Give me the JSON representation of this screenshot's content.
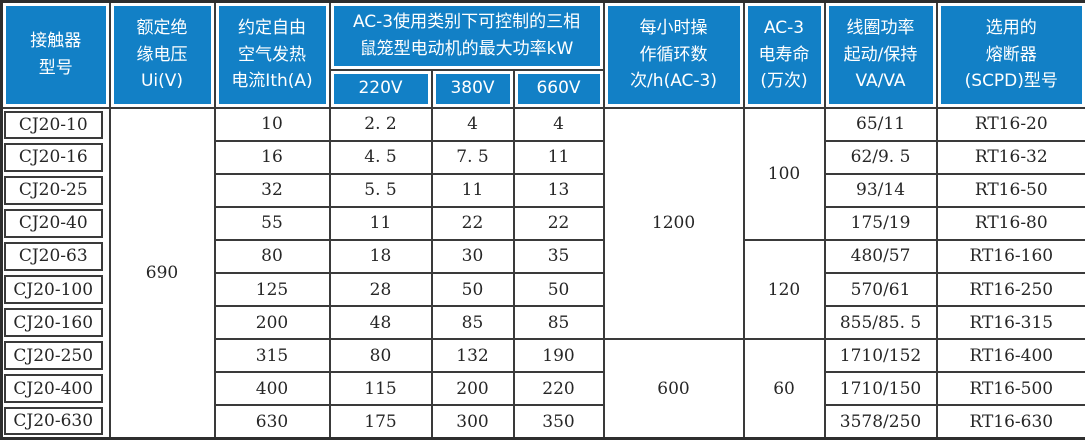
{
  "table": {
    "title": "CJ20 contactor specification table",
    "colors": {
      "header_bg": "#1280c6",
      "header_text": "#ffffff",
      "grid": "#3a3a3a",
      "body_text": "#262626",
      "background": "#ffffff"
    },
    "header": {
      "model": "接触器\n型号",
      "insulation_voltage": "额定绝\n缘电压\nUi(V)",
      "thermal_current": "约定自由\n空气发热\n电流Ith(A)",
      "motor_power_group": "AC-3使用类别下可控制的三相\n鼠笼型电动机的最大功率kW",
      "motor_power_sub": [
        "220V",
        "380V",
        "660V"
      ],
      "cycles_per_hour": "每小时操\n作循环数\n次/h(AC-3)",
      "electrical_life": "AC-3\n电寿命\n(万次)",
      "coil_power": "线圈功率\n起动/保持\nVA/VA",
      "fuse": "选用的\n熔断器\n(SCPD)型号"
    },
    "insulation_voltage_merged": {
      "start": 0,
      "span": 10,
      "value": "690"
    },
    "cycles_merged": [
      {
        "start": 0,
        "span": 7,
        "value": "1200"
      },
      {
        "start": 7,
        "span": 3,
        "value": "600"
      }
    ],
    "life_merged": [
      {
        "start": 0,
        "span": 4,
        "value": "100"
      },
      {
        "start": 4,
        "span": 3,
        "value": "120"
      },
      {
        "start": 7,
        "span": 3,
        "value": "60"
      }
    ],
    "rows": [
      {
        "model": "CJ20-10",
        "ith": "10",
        "p220": "2. 2",
        "p380": "4",
        "p660": "4",
        "coil": "65/11",
        "fuse": "RT16-20"
      },
      {
        "model": "CJ20-16",
        "ith": "16",
        "p220": "4. 5",
        "p380": "7. 5",
        "p660": "11",
        "coil": "62/9. 5",
        "fuse": "RT16-32"
      },
      {
        "model": "CJ20-25",
        "ith": "32",
        "p220": "5. 5",
        "p380": "11",
        "p660": "13",
        "coil": "93/14",
        "fuse": "RT16-50"
      },
      {
        "model": "CJ20-40",
        "ith": "55",
        "p220": "11",
        "p380": "22",
        "p660": "22",
        "coil": "175/19",
        "fuse": "RT16-80"
      },
      {
        "model": "CJ20-63",
        "ith": "80",
        "p220": "18",
        "p380": "30",
        "p660": "35",
        "coil": "480/57",
        "fuse": "RT16-160"
      },
      {
        "model": "CJ20-100",
        "ith": "125",
        "p220": "28",
        "p380": "50",
        "p660": "50",
        "coil": "570/61",
        "fuse": "RT16-250"
      },
      {
        "model": "CJ20-160",
        "ith": "200",
        "p220": "48",
        "p380": "85",
        "p660": "85",
        "coil": "855/85. 5",
        "fuse": "RT16-315"
      },
      {
        "model": "CJ20-250",
        "ith": "315",
        "p220": "80",
        "p380": "132",
        "p660": "190",
        "coil": "1710/152",
        "fuse": "RT16-400"
      },
      {
        "model": "CJ20-400",
        "ith": "400",
        "p220": "115",
        "p380": "200",
        "p660": "220",
        "coil": "1710/150",
        "fuse": "RT16-500"
      },
      {
        "model": "CJ20-630",
        "ith": "630",
        "p220": "175",
        "p380": "300",
        "p660": "350",
        "coil": "3578/250",
        "fuse": "RT16-630"
      }
    ]
  }
}
